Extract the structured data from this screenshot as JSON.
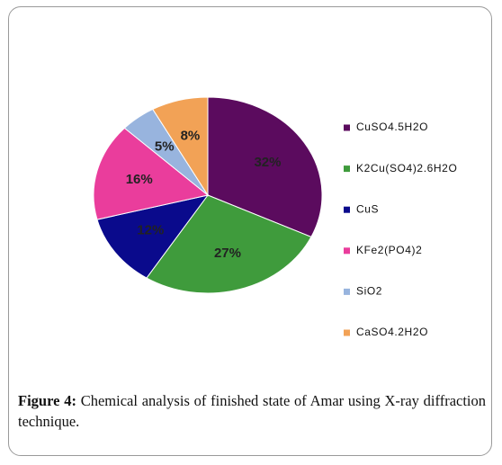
{
  "chart_data": {
    "type": "pie",
    "categories": [
      "CuSO4.5H2O",
      "K2Cu(SO4)2.6H2O",
      "CuS",
      "KFe2(PO4)2",
      "SiO2",
      "CaSO4.2H2O"
    ],
    "values": [
      32,
      27,
      12,
      16,
      5,
      8
    ],
    "value_labels": [
      "32%",
      "27%",
      "12%",
      "16%",
      "5%",
      "8%"
    ],
    "colors": [
      "#5b0b5e",
      "#3f9b3c",
      "#0a0a8c",
      "#ea3d9c",
      "#98b4de",
      "#f2a256"
    ],
    "legend": "right"
  },
  "caption": {
    "label": "Figure 4:",
    "text": "Chemical analysis of finished state of Amar using X-ray diffraction technique."
  }
}
